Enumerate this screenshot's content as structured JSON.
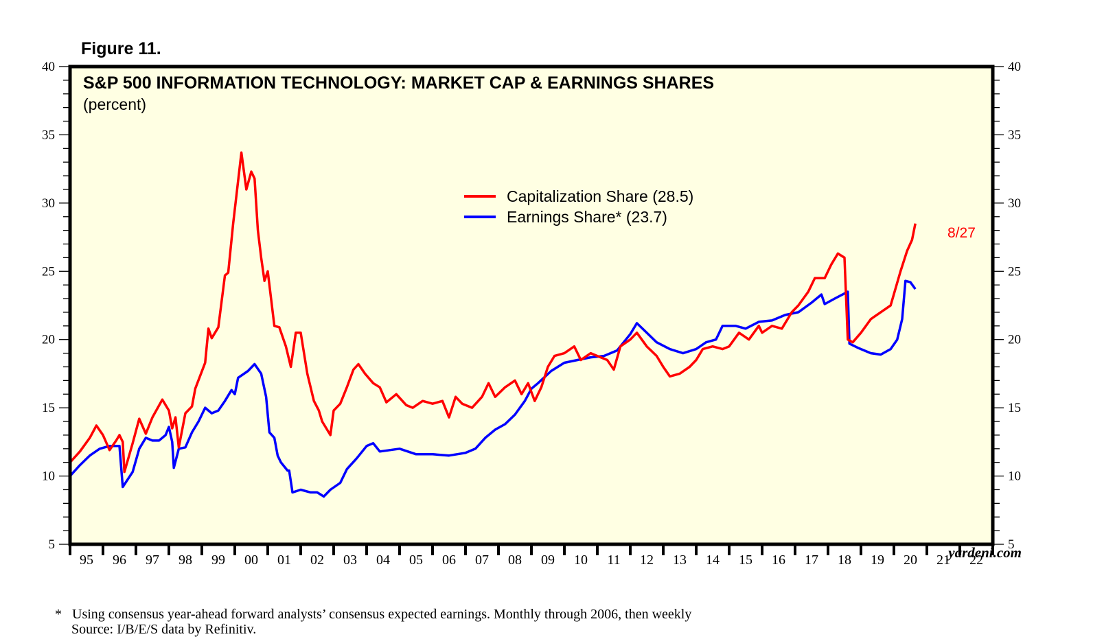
{
  "figure_label": "Figure 11.",
  "footnotes": {
    "marker": "*",
    "note": "Using consensus year-ahead forward analysts’ consensus expected earnings. Monthly through 2006, then weekly",
    "source": "Source: I/B/E/S data by Refinitiv."
  },
  "credit": "yardeni.com",
  "chart_data": {
    "type": "line",
    "title": "S&P 500 INFORMATION TECHNOLOGY: MARKET CAP & EARNINGS SHARES",
    "subtitle": "(percent)",
    "xlabel": "",
    "ylabel": "percent",
    "ylim": [
      5,
      40
    ],
    "xlim": [
      1995,
      2023
    ],
    "y_ticks": [
      "40",
      "35",
      "30",
      "25",
      "20",
      "15",
      "10",
      "5"
    ],
    "y_tick_values": [
      40,
      35,
      30,
      25,
      20,
      15,
      10,
      5
    ],
    "x_tick_labels": [
      "95",
      "96",
      "97",
      "98",
      "99",
      "00",
      "01",
      "02",
      "03",
      "04",
      "05",
      "06",
      "07",
      "08",
      "09",
      "10",
      "11",
      "12",
      "13",
      "14",
      "15",
      "16",
      "17",
      "18",
      "19",
      "20",
      "21",
      "22"
    ],
    "grid": false,
    "legend_position": "top-center",
    "background": "#ffffe3",
    "annotation": {
      "text": "8/27",
      "series": "Capitalization Share",
      "color": "#ff0000"
    },
    "series": [
      {
        "name": "Capitalization Share (28.5)",
        "color": "#ff0000",
        "x": [
          1995.0,
          1995.3,
          1995.6,
          1995.8,
          1996.0,
          1996.2,
          1996.4,
          1996.5,
          1996.6,
          1996.65,
          1996.9,
          1997.1,
          1997.3,
          1997.5,
          1997.8,
          1998.0,
          1998.1,
          1998.2,
          1998.3,
          1998.5,
          1998.7,
          1998.8,
          1999.1,
          1999.2,
          1999.3,
          1999.5,
          1999.6,
          1999.7,
          1999.8,
          1999.95,
          2000.2,
          2000.35,
          2000.5,
          2000.6,
          2000.7,
          2000.8,
          2000.9,
          2001.0,
          2001.1,
          2001.2,
          2001.35,
          2001.55,
          2001.7,
          2001.85,
          2002.0,
          2002.2,
          2002.4,
          2002.55,
          2002.65,
          2002.9,
          2003.0,
          2003.2,
          2003.4,
          2003.6,
          2003.75,
          2003.95,
          2004.2,
          2004.4,
          2004.6,
          2004.9,
          2005.2,
          2005.4,
          2005.7,
          2006.0,
          2006.3,
          2006.5,
          2006.7,
          2006.9,
          2007.2,
          2007.5,
          2007.7,
          2007.9,
          2008.2,
          2008.5,
          2008.7,
          2008.9,
          2009.1,
          2009.3,
          2009.5,
          2009.7,
          2010.0,
          2010.3,
          2010.5,
          2010.8,
          2011.0,
          2011.3,
          2011.5,
          2011.7,
          2012.0,
          2012.2,
          2012.5,
          2012.8,
          2013.0,
          2013.2,
          2013.5,
          2013.8,
          2014.0,
          2014.2,
          2014.5,
          2014.8,
          2015.0,
          2015.3,
          2015.6,
          2015.9,
          2016.0,
          2016.3,
          2016.6,
          2016.9,
          2017.1,
          2017.4,
          2017.6,
          2017.9,
          2018.1,
          2018.3,
          2018.5,
          2018.6,
          2018.75,
          2019.0,
          2019.3,
          2019.6,
          2019.9,
          2020.2,
          2020.4,
          2020.55,
          2020.65
        ],
        "values": [
          11.0,
          11.8,
          12.8,
          13.7,
          13.0,
          11.9,
          12.6,
          13.0,
          12.5,
          10.3,
          12.4,
          14.2,
          13.1,
          14.3,
          15.6,
          14.8,
          13.5,
          14.3,
          12.1,
          14.6,
          15.1,
          16.4,
          18.3,
          20.8,
          20.1,
          20.9,
          22.8,
          24.7,
          24.9,
          28.5,
          33.7,
          31.0,
          32.3,
          31.8,
          28.0,
          26.0,
          24.3,
          25.0,
          23.0,
          21.0,
          20.9,
          19.5,
          18.0,
          20.5,
          20.5,
          17.5,
          15.5,
          14.8,
          14.0,
          13.0,
          14.8,
          15.3,
          16.5,
          17.8,
          18.2,
          17.5,
          16.8,
          16.5,
          15.4,
          16.0,
          15.2,
          15.0,
          15.5,
          15.3,
          15.5,
          14.3,
          15.8,
          15.3,
          15.0,
          15.8,
          16.8,
          15.8,
          16.5,
          17.0,
          16.0,
          16.8,
          15.5,
          16.5,
          18.0,
          18.8,
          19.0,
          19.5,
          18.5,
          19.0,
          18.8,
          18.5,
          17.8,
          19.5,
          20.0,
          20.5,
          19.5,
          18.8,
          18.0,
          17.3,
          17.5,
          18.0,
          18.5,
          19.3,
          19.5,
          19.3,
          19.5,
          20.5,
          20.0,
          21.0,
          20.5,
          21.0,
          20.8,
          22.0,
          22.5,
          23.5,
          24.5,
          24.5,
          25.5,
          26.3,
          26.0,
          20.0,
          19.8,
          20.5,
          21.5,
          22.0,
          22.5,
          25.0,
          26.5,
          27.3,
          28.5
        ]
      },
      {
        "name": "Earnings Share* (23.7)",
        "color": "#0000ff",
        "x": [
          1995.0,
          1995.3,
          1995.6,
          1995.9,
          1996.2,
          1996.5,
          1996.6,
          1996.9,
          1997.1,
          1997.3,
          1997.5,
          1997.7,
          1997.9,
          1998.0,
          1998.1,
          1998.15,
          1998.3,
          1998.5,
          1998.7,
          1998.9,
          1999.1,
          1999.3,
          1999.5,
          1999.7,
          1999.9,
          2000.0,
          2000.1,
          2000.4,
          2000.6,
          2000.8,
          2000.95,
          2001.05,
          2001.2,
          2001.3,
          2001.4,
          2001.6,
          2001.65,
          2001.75,
          2002.0,
          2002.3,
          2002.5,
          2002.7,
          2002.9,
          2003.2,
          2003.4,
          2003.7,
          2004.0,
          2004.2,
          2004.4,
          2004.7,
          2005.0,
          2005.5,
          2006.0,
          2006.5,
          2007.0,
          2007.3,
          2007.6,
          2007.9,
          2008.2,
          2008.5,
          2008.8,
          2009.0,
          2009.2,
          2009.6,
          2010.0,
          2010.4,
          2010.8,
          2011.2,
          2011.6,
          2012.0,
          2012.2,
          2012.5,
          2012.8,
          2013.2,
          2013.6,
          2014.0,
          2014.3,
          2014.6,
          2014.8,
          2015.2,
          2015.5,
          2015.9,
          2016.3,
          2016.7,
          2017.1,
          2017.5,
          2017.8,
          2017.9,
          2018.2,
          2018.6,
          2018.65,
          2018.9,
          2019.3,
          2019.6,
          2019.9,
          2020.1,
          2020.25,
          2020.35,
          2020.5,
          2020.65
        ],
        "values": [
          10.0,
          10.8,
          11.5,
          12.0,
          12.2,
          12.2,
          9.2,
          10.3,
          12.0,
          12.8,
          12.6,
          12.6,
          13.0,
          13.6,
          12.5,
          10.6,
          12.0,
          12.1,
          13.2,
          14.0,
          15.0,
          14.6,
          14.8,
          15.5,
          16.3,
          16.0,
          17.2,
          17.7,
          18.2,
          17.5,
          15.8,
          13.2,
          12.8,
          11.5,
          11.0,
          10.4,
          10.4,
          8.8,
          9.0,
          8.8,
          8.8,
          8.5,
          9.0,
          9.5,
          10.5,
          11.3,
          12.2,
          12.4,
          11.8,
          11.9,
          12.0,
          11.6,
          11.6,
          11.5,
          11.7,
          12.0,
          12.8,
          13.4,
          13.8,
          14.5,
          15.5,
          16.4,
          16.8,
          17.7,
          18.3,
          18.5,
          18.7,
          18.8,
          19.2,
          20.4,
          21.2,
          20.5,
          19.8,
          19.3,
          19.0,
          19.3,
          19.8,
          20.0,
          21.0,
          21.0,
          20.8,
          21.3,
          21.4,
          21.8,
          22.0,
          22.7,
          23.3,
          22.6,
          23.0,
          23.5,
          19.7,
          19.4,
          19.0,
          18.9,
          19.3,
          20.0,
          21.5,
          24.3,
          24.2,
          23.7
        ]
      }
    ]
  }
}
